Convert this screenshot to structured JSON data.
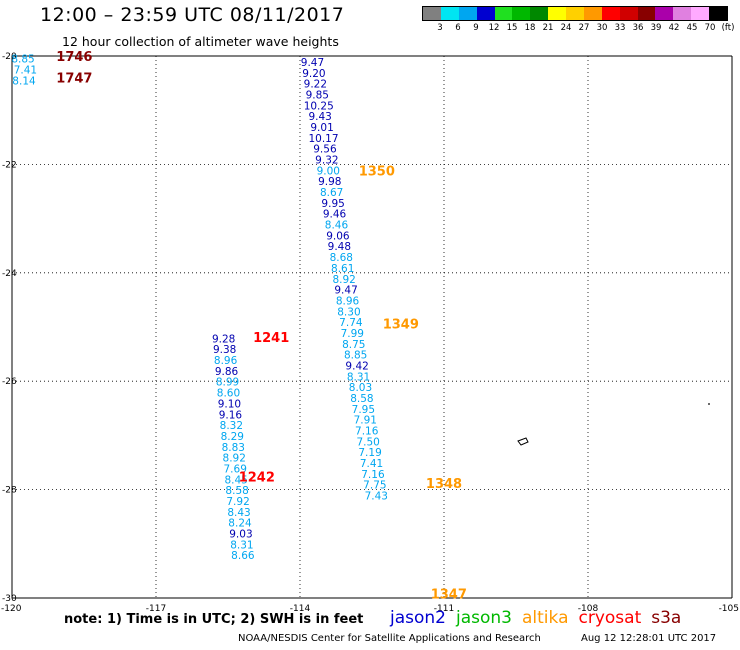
{
  "header": {
    "title": "12:00 – 23:59 UTC 08/11/2017",
    "subtitle": "12 hour collection of altimeter wave heights"
  },
  "legend": {
    "colors": [
      "#808080",
      "#00e5f2",
      "#00a6f0",
      "#0000d0",
      "#20e020",
      "#00b800",
      "#008800",
      "#ffff00",
      "#ffd000",
      "#ff9900",
      "#ff0000",
      "#d00000",
      "#880000",
      "#aa00aa",
      "#e080e0",
      "#ffaaff",
      "#000000"
    ],
    "labels": [
      "3",
      "6",
      "9",
      "12",
      "15",
      "18",
      "21",
      "24",
      "27",
      "30",
      "33",
      "36",
      "39",
      "42",
      "45",
      "70",
      "(ft)"
    ]
  },
  "map": {
    "lon_min": -120,
    "lon_max": -105,
    "lat_min": -30,
    "lat_max": -20,
    "lon_grid": [
      -117,
      -114,
      -111,
      -108
    ],
    "lat_grid": [
      -22,
      -24,
      -26,
      -28
    ],
    "lon_labels": [
      "-120",
      "-117",
      "-114",
      "-111",
      "-108",
      "-105"
    ],
    "lat_labels": [
      "-20",
      "-22",
      "-24",
      "-26",
      "-28",
      "-30"
    ],
    "colors": {
      "dark": "#0000b0",
      "light": "#00a6f0",
      "orange": "#ff9900",
      "red": "#ff0000",
      "darkred": "#880000"
    }
  },
  "chart_data": {
    "type": "scatter",
    "x_axis": "longitude",
    "y_axis": "latitude",
    "points": [
      {
        "lon": -119.77,
        "lat": -20.05,
        "v": "8.85",
        "c": "light"
      },
      {
        "lon": -119.72,
        "lat": -20.25,
        "v": "7.41",
        "c": "light"
      },
      {
        "lon": -119.75,
        "lat": -20.45,
        "v": "8.14",
        "c": "light"
      },
      {
        "lon": -113.74,
        "lat": -20.11,
        "v": "9.47",
        "c": "dark"
      },
      {
        "lon": -113.71,
        "lat": -20.31,
        "v": "9.20",
        "c": "dark"
      },
      {
        "lon": -113.68,
        "lat": -20.51,
        "v": "9.22",
        "c": "dark"
      },
      {
        "lon": -113.64,
        "lat": -20.71,
        "v": "9.85",
        "c": "dark"
      },
      {
        "lon": -113.61,
        "lat": -20.91,
        "v": "10.25",
        "c": "dark"
      },
      {
        "lon": -113.58,
        "lat": -21.11,
        "v": "9.43",
        "c": "dark"
      },
      {
        "lon": -113.54,
        "lat": -21.31,
        "v": "9.01",
        "c": "dark"
      },
      {
        "lon": -113.51,
        "lat": -21.51,
        "v": "10.17",
        "c": "dark"
      },
      {
        "lon": -113.48,
        "lat": -21.71,
        "v": "9.56",
        "c": "dark"
      },
      {
        "lon": -113.44,
        "lat": -21.91,
        "v": "9.32",
        "c": "dark"
      },
      {
        "lon": -113.41,
        "lat": -22.11,
        "v": "9.00",
        "c": "light"
      },
      {
        "lon": -113.38,
        "lat": -22.31,
        "v": "9.98",
        "c": "dark"
      },
      {
        "lon": -113.34,
        "lat": -22.51,
        "v": "8.67",
        "c": "light"
      },
      {
        "lon": -113.31,
        "lat": -22.71,
        "v": "9.95",
        "c": "dark"
      },
      {
        "lon": -113.28,
        "lat": -22.91,
        "v": "9.46",
        "c": "dark"
      },
      {
        "lon": -113.24,
        "lat": -23.11,
        "v": "8.46",
        "c": "light"
      },
      {
        "lon": -113.21,
        "lat": -23.31,
        "v": "9.06",
        "c": "dark"
      },
      {
        "lon": -113.18,
        "lat": -23.51,
        "v": "9.48",
        "c": "dark"
      },
      {
        "lon": -113.14,
        "lat": -23.71,
        "v": "8.68",
        "c": "light"
      },
      {
        "lon": -113.11,
        "lat": -23.91,
        "v": "8.61",
        "c": "light"
      },
      {
        "lon": -113.08,
        "lat": -24.11,
        "v": "8.92",
        "c": "light"
      },
      {
        "lon": -113.04,
        "lat": -24.31,
        "v": "9.47",
        "c": "dark"
      },
      {
        "lon": -113.01,
        "lat": -24.51,
        "v": "8.96",
        "c": "light"
      },
      {
        "lon": -112.98,
        "lat": -24.71,
        "v": "8.30",
        "c": "light"
      },
      {
        "lon": -112.94,
        "lat": -24.91,
        "v": "7.74",
        "c": "light"
      },
      {
        "lon": -112.91,
        "lat": -25.11,
        "v": "7.99",
        "c": "light"
      },
      {
        "lon": -112.88,
        "lat": -25.31,
        "v": "8.75",
        "c": "light"
      },
      {
        "lon": -112.84,
        "lat": -25.51,
        "v": "8.85",
        "c": "light"
      },
      {
        "lon": -112.81,
        "lat": -25.71,
        "v": "9.42",
        "c": "dark"
      },
      {
        "lon": -112.78,
        "lat": -25.91,
        "v": "8.31",
        "c": "light"
      },
      {
        "lon": -112.74,
        "lat": -26.11,
        "v": "8.03",
        "c": "light"
      },
      {
        "lon": -112.71,
        "lat": -26.31,
        "v": "8.58",
        "c": "light"
      },
      {
        "lon": -112.68,
        "lat": -26.51,
        "v": "7.95",
        "c": "light"
      },
      {
        "lon": -112.64,
        "lat": -26.71,
        "v": "7.91",
        "c": "light"
      },
      {
        "lon": -112.61,
        "lat": -26.91,
        "v": "7.16",
        "c": "light"
      },
      {
        "lon": -112.58,
        "lat": -27.11,
        "v": "7.50",
        "c": "light"
      },
      {
        "lon": -112.54,
        "lat": -27.31,
        "v": "7.19",
        "c": "light"
      },
      {
        "lon": -112.51,
        "lat": -27.51,
        "v": "7.41",
        "c": "light"
      },
      {
        "lon": -112.48,
        "lat": -27.71,
        "v": "7.16",
        "c": "light"
      },
      {
        "lon": -112.44,
        "lat": -27.91,
        "v": "7.75",
        "c": "light"
      },
      {
        "lon": -112.41,
        "lat": -28.11,
        "v": "7.43",
        "c": "light"
      },
      {
        "lon": -115.59,
        "lat": -25.21,
        "v": "9.28",
        "c": "dark"
      },
      {
        "lon": -115.57,
        "lat": -25.41,
        "v": "9.38",
        "c": "dark"
      },
      {
        "lon": -115.55,
        "lat": -25.61,
        "v": "8.96",
        "c": "light"
      },
      {
        "lon": -115.53,
        "lat": -25.81,
        "v": "9.86",
        "c": "dark"
      },
      {
        "lon": -115.51,
        "lat": -26.01,
        "v": "8.99",
        "c": "light"
      },
      {
        "lon": -115.49,
        "lat": -26.21,
        "v": "8.60",
        "c": "light"
      },
      {
        "lon": -115.47,
        "lat": -26.41,
        "v": "9.10",
        "c": "dark"
      },
      {
        "lon": -115.45,
        "lat": -26.61,
        "v": "9.16",
        "c": "dark"
      },
      {
        "lon": -115.43,
        "lat": -26.81,
        "v": "8.32",
        "c": "light"
      },
      {
        "lon": -115.41,
        "lat": -27.01,
        "v": "8.29",
        "c": "light"
      },
      {
        "lon": -115.39,
        "lat": -27.21,
        "v": "8.83",
        "c": "light"
      },
      {
        "lon": -115.37,
        "lat": -27.41,
        "v": "8.92",
        "c": "light"
      },
      {
        "lon": -115.35,
        "lat": -27.61,
        "v": "7.69",
        "c": "light"
      },
      {
        "lon": -115.33,
        "lat": -27.81,
        "v": "8.45",
        "c": "light"
      },
      {
        "lon": -115.31,
        "lat": -28.01,
        "v": "8.58",
        "c": "light"
      },
      {
        "lon": -115.29,
        "lat": -28.21,
        "v": "7.92",
        "c": "light"
      },
      {
        "lon": -115.27,
        "lat": -28.41,
        "v": "8.43",
        "c": "light"
      },
      {
        "lon": -115.25,
        "lat": -28.61,
        "v": "8.24",
        "c": "light"
      },
      {
        "lon": -115.23,
        "lat": -28.81,
        "v": "9.03",
        "c": "dark"
      },
      {
        "lon": -115.21,
        "lat": -29.01,
        "v": "8.31",
        "c": "light"
      },
      {
        "lon": -115.19,
        "lat": -29.21,
        "v": "8.66",
        "c": "light"
      }
    ],
    "time_labels": [
      {
        "lon": -118.7,
        "lat": -20.0,
        "t": "1746",
        "c": "darkred"
      },
      {
        "lon": -118.7,
        "lat": -20.4,
        "t": "1747",
        "c": "darkred"
      },
      {
        "lon": -112.4,
        "lat": -22.11,
        "t": "1350",
        "c": "orange"
      },
      {
        "lon": -111.9,
        "lat": -24.94,
        "t": "1349",
        "c": "orange"
      },
      {
        "lon": -111.0,
        "lat": -27.88,
        "t": "1348",
        "c": "orange"
      },
      {
        "lon": -110.9,
        "lat": -29.92,
        "t": "1347",
        "c": "orange"
      },
      {
        "lon": -114.6,
        "lat": -25.18,
        "t": "1241",
        "c": "red"
      },
      {
        "lon": -114.9,
        "lat": -27.76,
        "t": "1242",
        "c": "red"
      }
    ]
  },
  "footer": {
    "note": "note: 1) Time is in UTC; 2) SWH is in feet",
    "satellites": [
      {
        "name": "jason2",
        "color": "#0000d0"
      },
      {
        "name": "jason3",
        "color": "#00b800"
      },
      {
        "name": "altika",
        "color": "#ff9900"
      },
      {
        "name": "cryosat",
        "color": "#ff0000"
      },
      {
        "name": "s3a",
        "color": "#880000"
      }
    ],
    "credit": "NOAA/NESDIS Center for Satellite Applications and Research",
    "stamp": "Aug 12 12:28:01 UTC 2017"
  }
}
